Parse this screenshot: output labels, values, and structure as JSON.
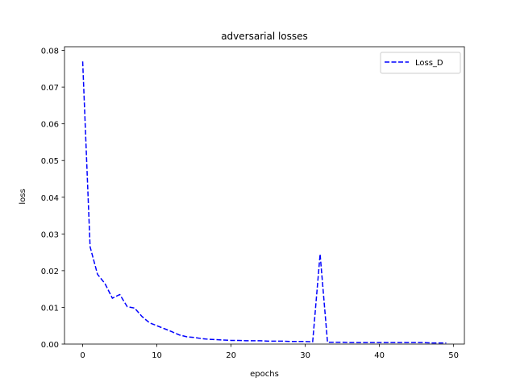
{
  "chart_data": {
    "type": "line",
    "title": "adversarial losses",
    "xlabel": "epochs",
    "ylabel": "loss",
    "xlim": [
      -2.45,
      51.45
    ],
    "ylim": [
      0,
      0.081
    ],
    "xticks": [
      0,
      10,
      20,
      30,
      40,
      50
    ],
    "yticks": [
      0.0,
      0.01,
      0.02,
      0.03,
      0.04,
      0.05,
      0.06,
      0.07,
      0.08
    ],
    "xtick_labels": [
      "0",
      "10",
      "20",
      "30",
      "40",
      "50"
    ],
    "ytick_labels": [
      "0.00",
      "0.01",
      "0.02",
      "0.03",
      "0.04",
      "0.05",
      "0.06",
      "0.07",
      "0.08"
    ],
    "grid": false,
    "legend_position": "upper right",
    "series": [
      {
        "name": "Loss_D",
        "color": "#0000ff",
        "line_style": "dashed",
        "x": [
          0,
          1,
          2,
          3,
          4,
          5,
          6,
          7,
          8,
          9,
          10,
          11,
          12,
          13,
          14,
          15,
          16,
          17,
          18,
          19,
          20,
          21,
          22,
          23,
          24,
          25,
          26,
          27,
          28,
          29,
          30,
          31,
          32,
          33,
          34,
          35,
          36,
          37,
          38,
          39,
          40,
          41,
          42,
          43,
          44,
          45,
          46,
          47,
          48,
          49
        ],
        "values": [
          0.077,
          0.0265,
          0.019,
          0.0165,
          0.0125,
          0.0135,
          0.0102,
          0.0098,
          0.0075,
          0.0058,
          0.005,
          0.0042,
          0.0034,
          0.0025,
          0.002,
          0.0018,
          0.0015,
          0.0013,
          0.0012,
          0.0011,
          0.001,
          0.001,
          0.0009,
          0.0009,
          0.0009,
          0.0008,
          0.0008,
          0.0008,
          0.0007,
          0.0007,
          0.0007,
          0.0006,
          0.0245,
          0.0005,
          0.0005,
          0.0005,
          0.0004,
          0.0004,
          0.0004,
          0.0004,
          0.0004,
          0.0004,
          0.0004,
          0.0004,
          0.0004,
          0.0004,
          0.0004,
          0.0003,
          0.0003,
          0.0003
        ]
      }
    ]
  }
}
